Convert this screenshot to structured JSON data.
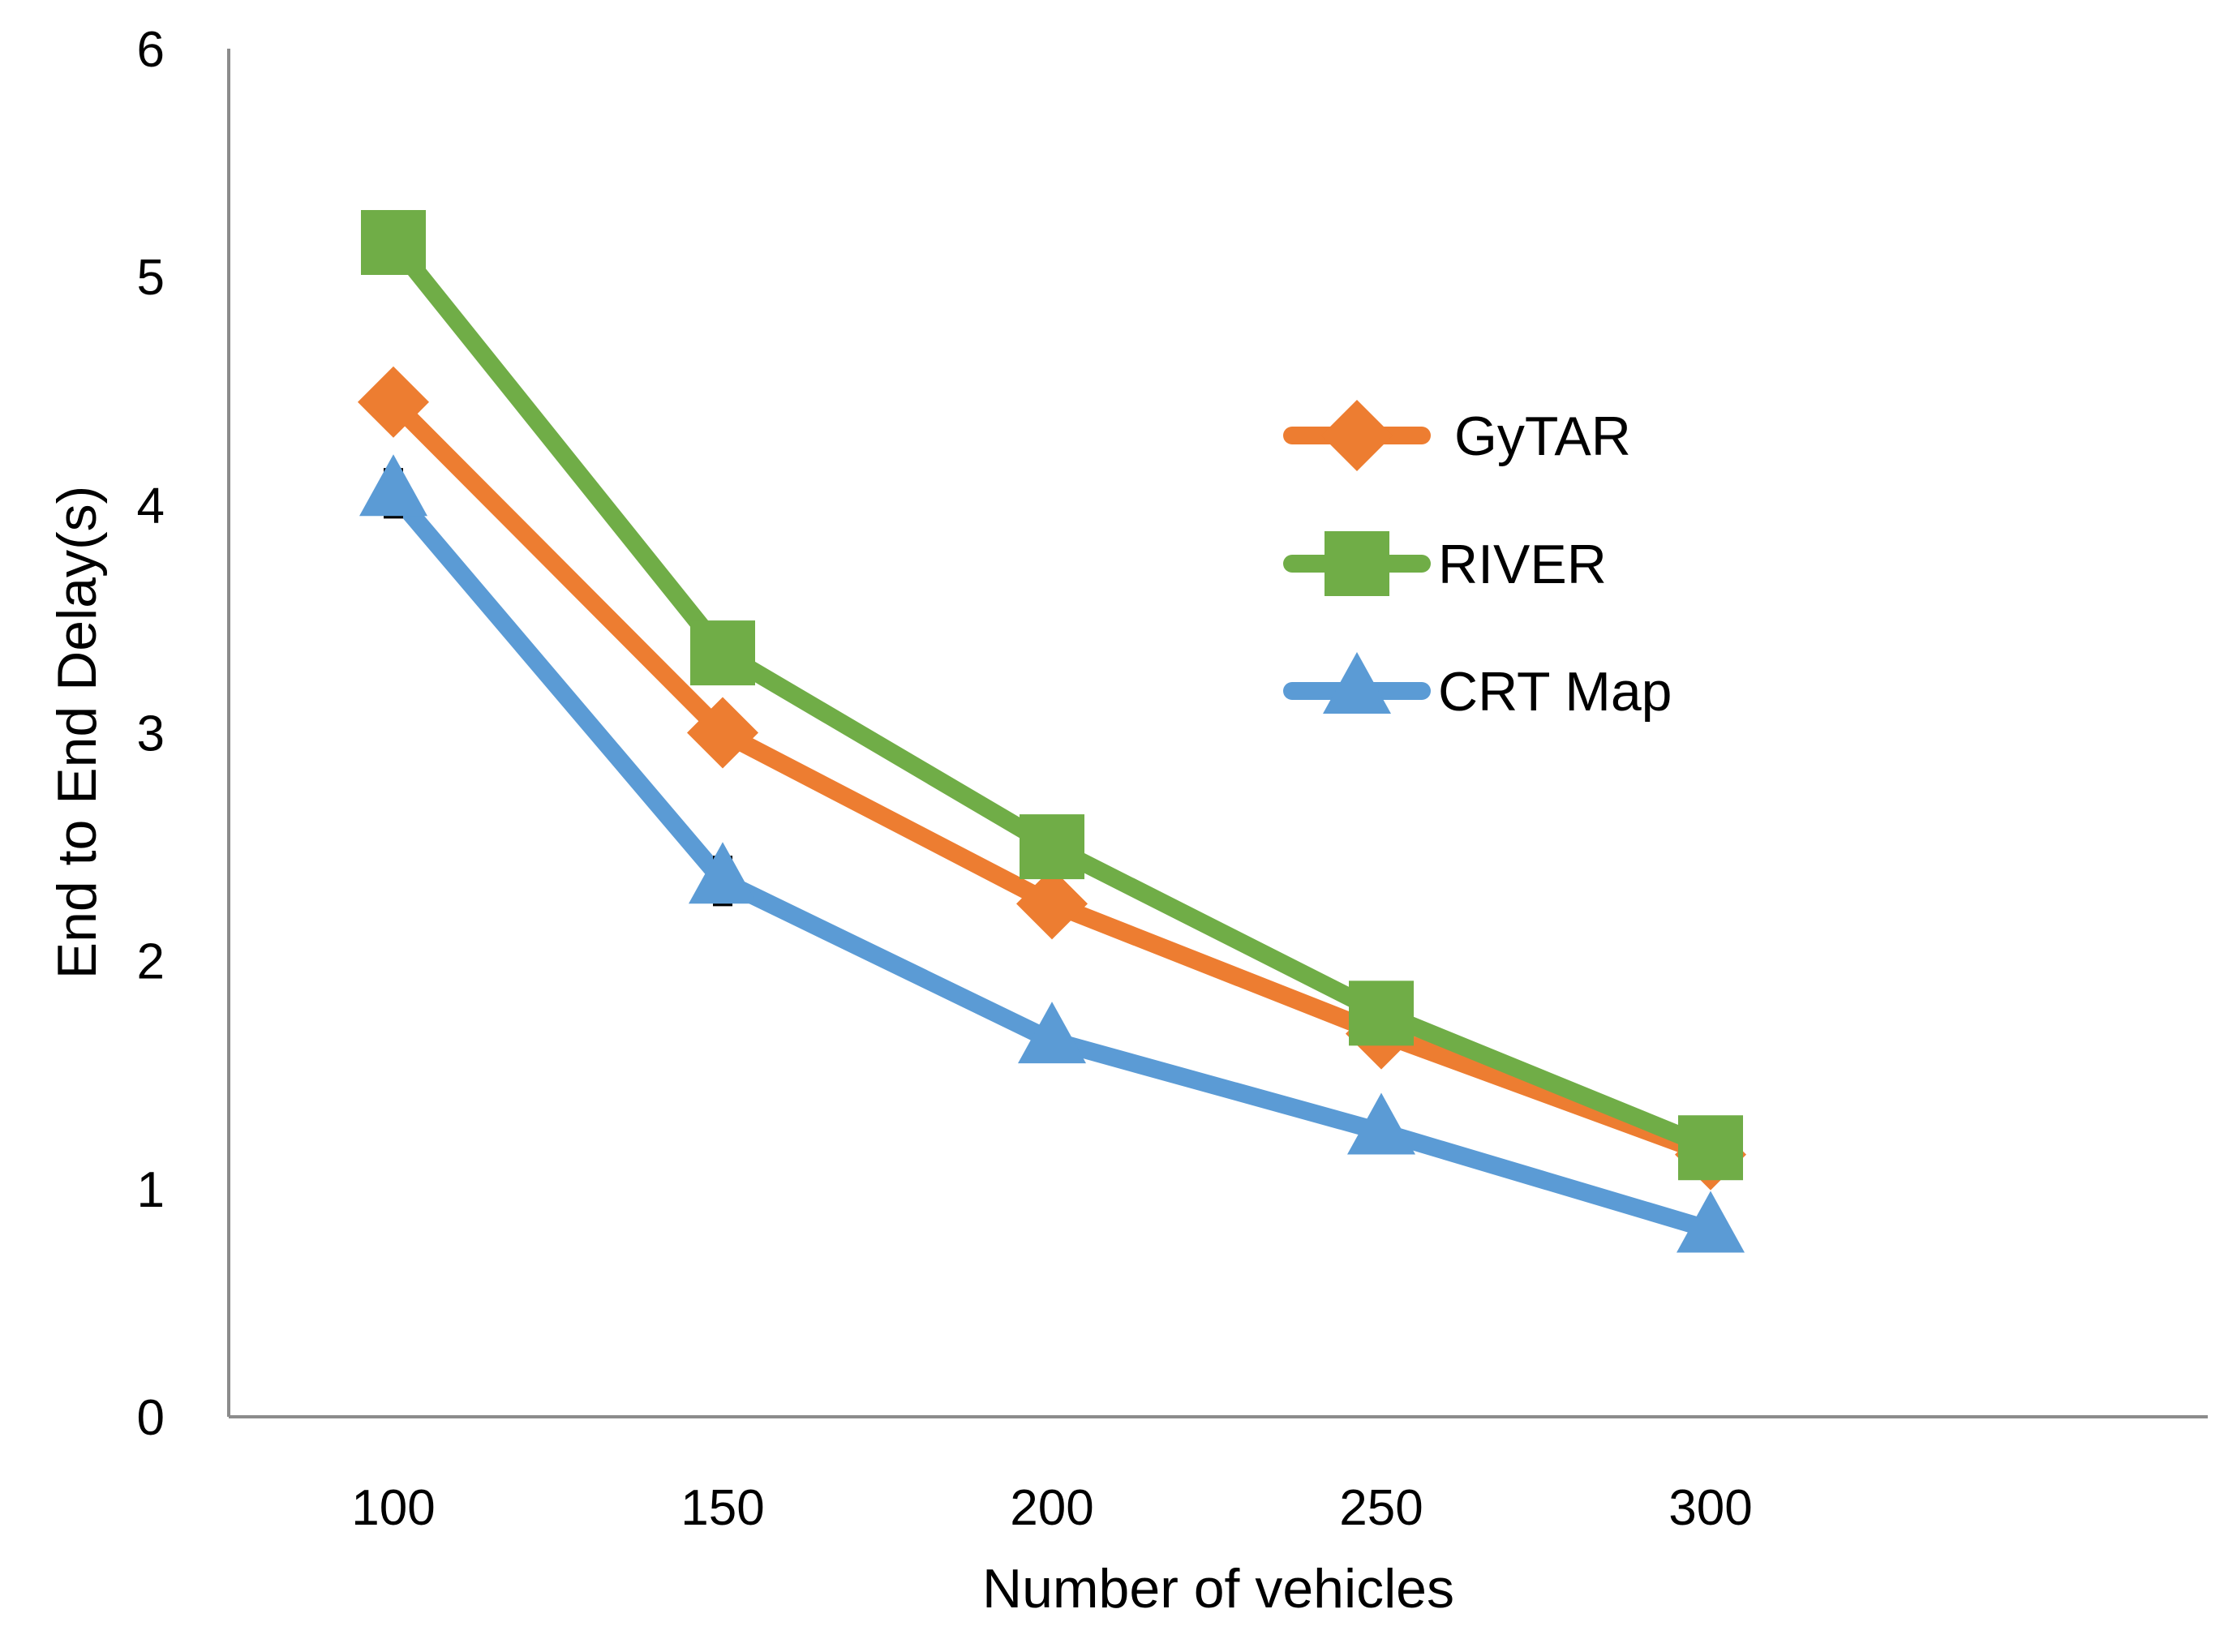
{
  "chart_data": {
    "type": "line",
    "title": "",
    "xlabel": "Number of vehicles",
    "ylabel": "End to End Delay(s)",
    "categories": [
      "100",
      "150",
      "200",
      "250",
      "300"
    ],
    "ylim": [
      0,
      6
    ],
    "yticks": [
      "0",
      "1",
      "2",
      "3",
      "4",
      "5",
      "6"
    ],
    "grid": false,
    "legend_position": "right",
    "series": [
      {
        "name": "GyTAR",
        "values": [
          4.45,
          3.0,
          2.25,
          1.68,
          1.15
        ],
        "color": "#ED7D31",
        "marker": "diamond"
      },
      {
        "name": "RIVER",
        "values": [
          5.15,
          3.35,
          2.5,
          1.77,
          1.18
        ],
        "color": "#70AD47",
        "marker": "square"
      },
      {
        "name": "CRT Map",
        "values": [
          4.05,
          2.35,
          1.65,
          1.25,
          0.82
        ],
        "color": "#5B9BD5",
        "marker": "triangle",
        "error_bars": [
          0.1,
          0.1,
          0.08,
          0.08,
          0.07
        ]
      }
    ]
  }
}
